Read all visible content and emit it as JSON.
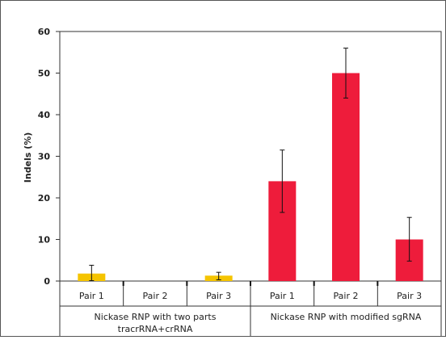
{
  "chart_data": {
    "type": "bar",
    "ylabel": "Indels (%)",
    "ylim": [
      0,
      60
    ],
    "yticks": [
      0,
      10,
      20,
      30,
      40,
      50,
      60
    ],
    "grid": false,
    "legend": "none",
    "groups": [
      {
        "label_lines": [
          "Nickase RNP with two parts",
          "tracrRNA+crRNA"
        ],
        "color": "#F5C400",
        "bars": [
          {
            "category": "Pair 1",
            "value": 1.8,
            "err_low": 0.1,
            "err_high": 3.8
          },
          {
            "category": "Pair 2",
            "value": 0,
            "err_low": null,
            "err_high": null
          },
          {
            "category": "Pair 3",
            "value": 1.3,
            "err_low": 0.3,
            "err_high": 2.1
          }
        ]
      },
      {
        "label_lines": [
          "Nickase RNP with modified sgRNA"
        ],
        "color": "#EE1C3B",
        "bars": [
          {
            "category": "Pair 1",
            "value": 24,
            "err_low": 16.5,
            "err_high": 31.5
          },
          {
            "category": "Pair 2",
            "value": 50,
            "err_low": 44,
            "err_high": 56
          },
          {
            "category": "Pair 3",
            "value": 10,
            "err_low": 4.8,
            "err_high": 15.3
          }
        ]
      }
    ]
  }
}
